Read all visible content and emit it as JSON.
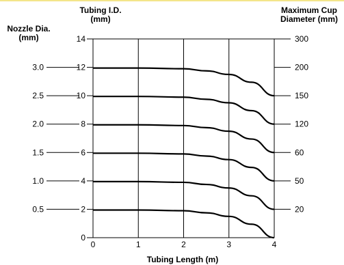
{
  "chart_data": {
    "type": "line",
    "title": "",
    "xlabel": "Tubing Length (m)",
    "x_ticks": [
      "0",
      "1",
      "2",
      "3",
      "4"
    ],
    "xlim": [
      0,
      4
    ],
    "left_axis_title_lines": [
      "Tubing I.D.",
      "(mm)"
    ],
    "left_ticks": [
      "0",
      "2",
      "4",
      "6",
      "8",
      "10",
      "12",
      "14"
    ],
    "ylim": [
      0,
      14
    ],
    "nozzle_title_lines": [
      "Nozzle Dia.",
      "(mm)"
    ],
    "nozzle_labels": [
      {
        "label": "0.5",
        "at": 2
      },
      {
        "label": "1.0",
        "at": 4
      },
      {
        "label": "1.5",
        "at": 6
      },
      {
        "label": "2.0",
        "at": 8
      },
      {
        "label": "2.5",
        "at": 10
      },
      {
        "label": "3.0",
        "at": 12
      }
    ],
    "right_axis_title_lines": [
      "Maximum Cup",
      "Diameter (mm)"
    ],
    "right_labels": [
      {
        "label": "20",
        "at": 1
      },
      {
        "label": "50",
        "at": 2
      },
      {
        "label": "60",
        "at": 3
      },
      {
        "label": "120",
        "at": 4
      },
      {
        "label": "150",
        "at": 5
      },
      {
        "label": "200",
        "at": 6
      },
      {
        "label": "300",
        "at": 7
      }
    ],
    "grid": true,
    "series": [
      {
        "x": [
          0,
          1,
          2,
          2.5,
          3,
          3.5,
          4
        ],
        "y": [
          1.95,
          1.95,
          1.9,
          1.75,
          1.5,
          0.95,
          0
        ]
      },
      {
        "x": [
          0,
          1,
          2,
          2.5,
          3,
          3.5,
          4
        ],
        "y": [
          3.95,
          3.95,
          3.9,
          3.75,
          3.5,
          2.95,
          2
        ]
      },
      {
        "x": [
          0,
          1,
          2,
          2.5,
          3,
          3.5,
          4
        ],
        "y": [
          5.95,
          5.95,
          5.9,
          5.75,
          5.5,
          4.95,
          4
        ]
      },
      {
        "x": [
          0,
          1,
          2,
          2.5,
          3,
          3.5,
          4
        ],
        "y": [
          7.95,
          7.95,
          7.9,
          7.75,
          7.5,
          6.95,
          6
        ]
      },
      {
        "x": [
          0,
          1,
          2,
          2.5,
          3,
          3.5,
          4
        ],
        "y": [
          9.95,
          9.95,
          9.9,
          9.75,
          9.5,
          8.95,
          8
        ]
      },
      {
        "x": [
          0,
          1,
          2,
          2.5,
          3,
          3.5,
          4
        ],
        "y": [
          11.95,
          11.95,
          11.9,
          11.75,
          11.5,
          10.95,
          10
        ]
      }
    ]
  }
}
